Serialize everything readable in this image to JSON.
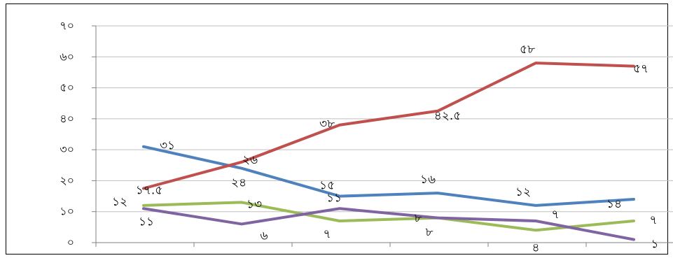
{
  "chart_data": {
    "type": "line",
    "ylim": [
      0,
      70
    ],
    "grid": true,
    "y_ticks": [
      "০",
      "১০",
      "২০",
      "৩০",
      "৪০",
      "৫০",
      "৬০",
      "৭০"
    ],
    "categories": [
      "",
      "",
      "",
      "",
      "",
      ""
    ],
    "series": [
      {
        "color": "#4f81bd",
        "values": [
          31,
          24,
          15,
          16,
          12,
          14
        ],
        "labels": [
          "৩১",
          "২৪",
          "১৫",
          "১৬",
          "১২",
          "১৪"
        ]
      },
      {
        "color": "#c0504d",
        "values": [
          17.5,
          26,
          38,
          42.5,
          58,
          57
        ],
        "labels": [
          "১৭.৫",
          "২৬",
          "৩৮",
          "৪২.৫",
          "৫৮",
          "৫৭"
        ]
      },
      {
        "color": "#9bbb59",
        "values": [
          12,
          13,
          7,
          8,
          4,
          7
        ],
        "labels": [
          "১২",
          "১৩",
          "৭",
          "৮",
          "৪",
          "৭"
        ]
      },
      {
        "color": "#8064a2",
        "values": [
          11,
          6,
          11,
          8,
          7,
          1
        ],
        "labels": [
          "১১",
          "৬",
          "১১",
          "৮",
          "৭",
          "১"
        ]
      }
    ]
  }
}
